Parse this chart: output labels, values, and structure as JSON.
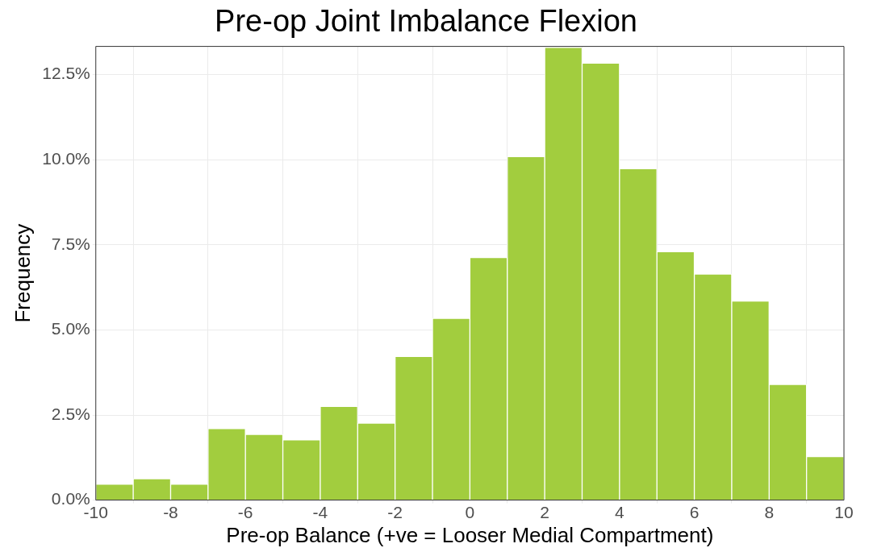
{
  "chart_data": {
    "type": "histogram",
    "title": "Pre-op Joint Imbalance Flexion",
    "xlabel": "Pre-op Balance (+ve = Looser Medial Compartment)",
    "ylabel": "Frequency",
    "bins": [
      -10,
      -9,
      -8,
      -7,
      -6,
      -5,
      -4,
      -3,
      -2,
      -1,
      0,
      1,
      2,
      3,
      4,
      5,
      6,
      7,
      8,
      9,
      10
    ],
    "values": [
      0.47,
      0.63,
      0.47,
      2.1,
      1.93,
      1.77,
      2.75,
      2.26,
      4.22,
      5.34,
      7.13,
      10.09,
      13.3,
      12.84,
      9.74,
      7.3,
      6.64,
      5.85,
      3.4,
      1.28
    ],
    "color": "#a2cd3e",
    "xlim": [
      -10,
      10
    ],
    "xticks": [
      -10,
      -8,
      -6,
      -4,
      -2,
      0,
      2,
      4,
      6,
      8,
      10
    ],
    "ylim": [
      0,
      13.33
    ],
    "yticks": [
      {
        "value": 0,
        "label": "0.0%"
      },
      {
        "value": 2.5,
        "label": "2.5%"
      },
      {
        "value": 5,
        "label": "5.0%"
      },
      {
        "value": 7.5,
        "label": "7.5%"
      },
      {
        "value": 10,
        "label": "10.0%"
      },
      {
        "value": 12.5,
        "label": "12.5%"
      }
    ],
    "grid": true
  }
}
